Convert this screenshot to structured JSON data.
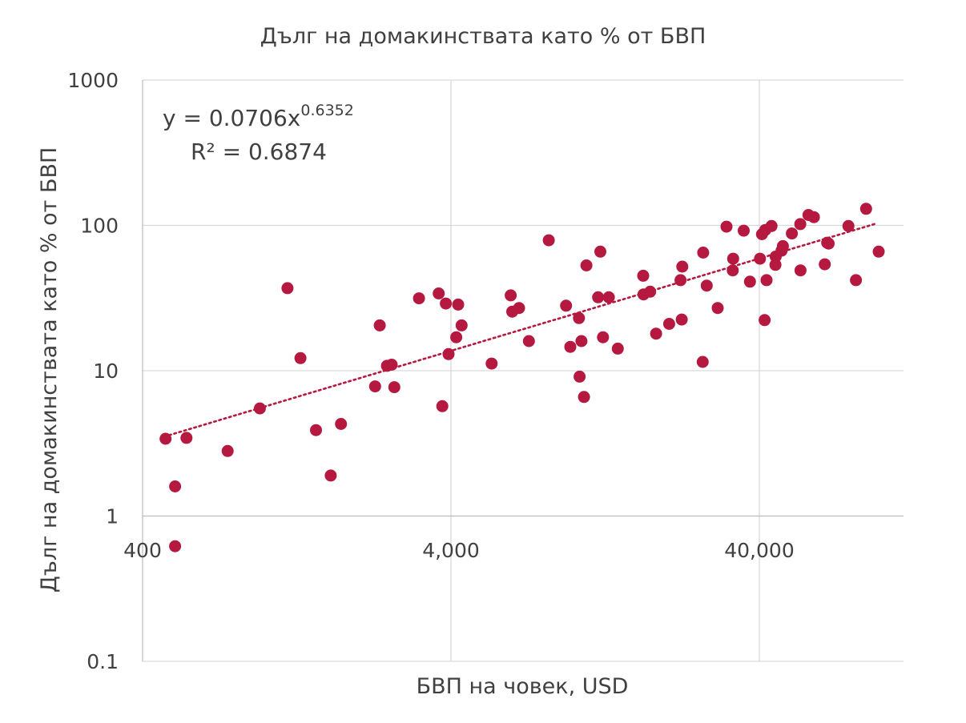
{
  "chart_data": {
    "type": "scatter",
    "title": "Дълг на домакинствата като % от БВП",
    "xlabel": "БВП на човек, USD",
    "ylabel": "Дълг на домакинствата като % от БВП",
    "x_scale": "log",
    "y_scale": "log",
    "xlim": [
      400,
      100000
    ],
    "ylim": [
      0.1,
      1000
    ],
    "x_ticks": [
      {
        "value": 400,
        "label": "400"
      },
      {
        "value": 4000,
        "label": "4,000"
      },
      {
        "value": 40000,
        "label": "40,000"
      }
    ],
    "y_ticks": [
      {
        "value": 0.1,
        "label": "0.1"
      },
      {
        "value": 1,
        "label": "1"
      },
      {
        "value": 10,
        "label": "10"
      },
      {
        "value": 100,
        "label": "100"
      },
      {
        "value": 1000,
        "label": "1000"
      }
    ],
    "grid": true,
    "marker_color": "#b5193f",
    "trendline": {
      "type": "power",
      "a": 0.0706,
      "b": 0.6352,
      "x_range": [
        470,
        96000
      ],
      "color": "#b5193f",
      "style": "dotted"
    },
    "equation_text": {
      "prefix": "y = 0.0706x",
      "exponent": "0.6352",
      "r2": "R² = 0.6874"
    },
    "points": [
      {
        "x": 475,
        "y": 3.4
      },
      {
        "x": 510,
        "y": 1.6
      },
      {
        "x": 510,
        "y": 0.62
      },
      {
        "x": 555,
        "y": 3.45
      },
      {
        "x": 755,
        "y": 2.8
      },
      {
        "x": 960,
        "y": 5.5
      },
      {
        "x": 1180,
        "y": 37
      },
      {
        "x": 1300,
        "y": 12.2
      },
      {
        "x": 1460,
        "y": 3.9
      },
      {
        "x": 1630,
        "y": 1.9
      },
      {
        "x": 1760,
        "y": 4.3
      },
      {
        "x": 2270,
        "y": 7.8
      },
      {
        "x": 2350,
        "y": 20.5
      },
      {
        "x": 2480,
        "y": 10.8
      },
      {
        "x": 2570,
        "y": 11
      },
      {
        "x": 2620,
        "y": 7.7
      },
      {
        "x": 3150,
        "y": 31.5
      },
      {
        "x": 3650,
        "y": 34
      },
      {
        "x": 3850,
        "y": 29
      },
      {
        "x": 3750,
        "y": 5.7
      },
      {
        "x": 3930,
        "y": 13
      },
      {
        "x": 4160,
        "y": 17
      },
      {
        "x": 4220,
        "y": 28.5
      },
      {
        "x": 4330,
        "y": 20.5
      },
      {
        "x": 5420,
        "y": 11.2
      },
      {
        "x": 6250,
        "y": 33
      },
      {
        "x": 6320,
        "y": 25.5
      },
      {
        "x": 6650,
        "y": 27
      },
      {
        "x": 7160,
        "y": 16
      },
      {
        "x": 8300,
        "y": 79
      },
      {
        "x": 9450,
        "y": 28
      },
      {
        "x": 9750,
        "y": 14.6
      },
      {
        "x": 10400,
        "y": 23
      },
      {
        "x": 10600,
        "y": 16
      },
      {
        "x": 10450,
        "y": 9.1
      },
      {
        "x": 10800,
        "y": 6.6
      },
      {
        "x": 11000,
        "y": 53
      },
      {
        "x": 12000,
        "y": 32
      },
      {
        "x": 12200,
        "y": 66
      },
      {
        "x": 12450,
        "y": 17
      },
      {
        "x": 13000,
        "y": 32
      },
      {
        "x": 13900,
        "y": 14.2
      },
      {
        "x": 16800,
        "y": 45
      },
      {
        "x": 16850,
        "y": 33.5
      },
      {
        "x": 17700,
        "y": 35
      },
      {
        "x": 18500,
        "y": 18
      },
      {
        "x": 20400,
        "y": 21
      },
      {
        "x": 22200,
        "y": 42
      },
      {
        "x": 22400,
        "y": 22.5
      },
      {
        "x": 22500,
        "y": 52
      },
      {
        "x": 26300,
        "y": 65
      },
      {
        "x": 26200,
        "y": 11.5
      },
      {
        "x": 27000,
        "y": 38.5
      },
      {
        "x": 29300,
        "y": 27
      },
      {
        "x": 31300,
        "y": 98
      },
      {
        "x": 32900,
        "y": 59
      },
      {
        "x": 32800,
        "y": 49
      },
      {
        "x": 35600,
        "y": 92
      },
      {
        "x": 37300,
        "y": 41
      },
      {
        "x": 40200,
        "y": 59
      },
      {
        "x": 40800,
        "y": 87
      },
      {
        "x": 41800,
        "y": 93
      },
      {
        "x": 42200,
        "y": 42
      },
      {
        "x": 41600,
        "y": 22.3
      },
      {
        "x": 43800,
        "y": 99
      },
      {
        "x": 45200,
        "y": 61
      },
      {
        "x": 45100,
        "y": 53.5
      },
      {
        "x": 47200,
        "y": 67
      },
      {
        "x": 47700,
        "y": 72
      },
      {
        "x": 51000,
        "y": 88
      },
      {
        "x": 54300,
        "y": 102
      },
      {
        "x": 54400,
        "y": 49
      },
      {
        "x": 57700,
        "y": 118
      },
      {
        "x": 60100,
        "y": 114
      },
      {
        "x": 66400,
        "y": 76
      },
      {
        "x": 65200,
        "y": 54
      },
      {
        "x": 67100,
        "y": 75
      },
      {
        "x": 77800,
        "y": 99
      },
      {
        "x": 82300,
        "y": 42
      },
      {
        "x": 88800,
        "y": 130
      },
      {
        "x": 97500,
        "y": 66
      }
    ]
  }
}
